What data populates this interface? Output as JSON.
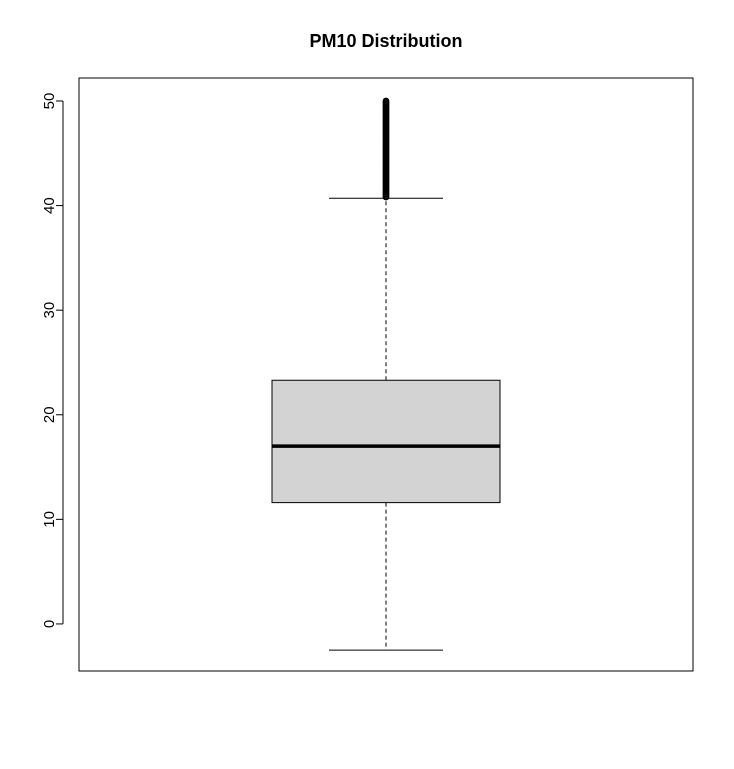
{
  "chart_data": {
    "type": "boxplot",
    "title": "PM10 Distribution",
    "xlabel": "",
    "ylabel": "",
    "ylim": [
      -4.5,
      52.2
    ],
    "yticks": [
      0,
      10,
      20,
      30,
      40,
      50
    ],
    "ytick_labels": [
      "0",
      "10",
      "20",
      "30",
      "40",
      "50"
    ],
    "grid": false,
    "box": {
      "whisker_low": -2.5,
      "q1": 11.6,
      "median": 17.0,
      "q3": 23.3,
      "whisker_high": 40.7
    },
    "outliers": {
      "min": 40.8,
      "max": 50.0
    },
    "colors": {
      "box_fill": "#d3d3d3",
      "line": "#000000",
      "background": "#ffffff"
    }
  }
}
